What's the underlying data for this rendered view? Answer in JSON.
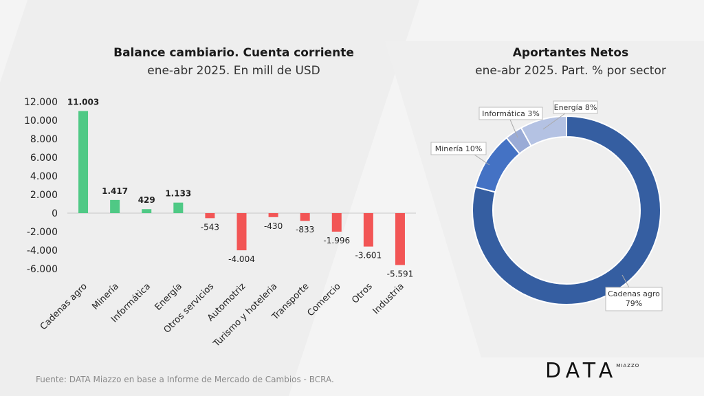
{
  "footer": {
    "source": "Fuente: DATA Miazzo en base a Informe de Mercado de Cambios - BCRA.",
    "logo_main": "DATA",
    "logo_sub": "MIAZZO"
  },
  "chart_data": [
    {
      "type": "bar",
      "title": "Balance cambiario. Cuenta corriente",
      "subtitle": "ene-abr 2025. En mill de USD",
      "categories": [
        "Cadenas agro",
        "Minería",
        "Informática",
        "Energía",
        "Otros servicios",
        "Automotriz",
        "Turismo y hoteleria",
        "Transporte",
        "Comercio",
        "Otros",
        "Industria"
      ],
      "values": [
        11003,
        1417,
        429,
        1133,
        -543,
        -4004,
        -430,
        -833,
        -1996,
        -3601,
        -5591
      ],
      "value_labels": [
        "11.003",
        "1.417",
        "429",
        "1.133",
        "-543",
        "-4.004",
        "-430",
        "-833",
        "-1.996",
        "-3.601",
        "-5.591"
      ],
      "yticks": [
        "12.000",
        "10.000",
        "8.000",
        "6.000",
        "4.000",
        "2.000",
        "0",
        "-2.000",
        "-4.000",
        "-6.000"
      ],
      "ytick_values": [
        12000,
        10000,
        8000,
        6000,
        4000,
        2000,
        0,
        -2000,
        -4000,
        -6000
      ],
      "ylim": [
        -6000,
        12000
      ],
      "colors": {
        "positive": "#4fc985",
        "negative": "#f25555"
      },
      "grid": false
    },
    {
      "type": "pie",
      "title": "Aportantes Netos",
      "subtitle": "ene-abr  2025. Part. % por sector",
      "donut": true,
      "slices": [
        {
          "label": "Cadenas agro",
          "value": 79,
          "value_label": "79%",
          "color": "#355ea1"
        },
        {
          "label": "Minería",
          "value": 10,
          "value_label": "10%",
          "color": "#4472c4"
        },
        {
          "label": "Informática",
          "value": 3,
          "value_label": "3%",
          "color": "#9aabd6"
        },
        {
          "label": "Energía",
          "value": 8,
          "value_label": "8%",
          "color": "#b4c2e3"
        }
      ]
    }
  ]
}
